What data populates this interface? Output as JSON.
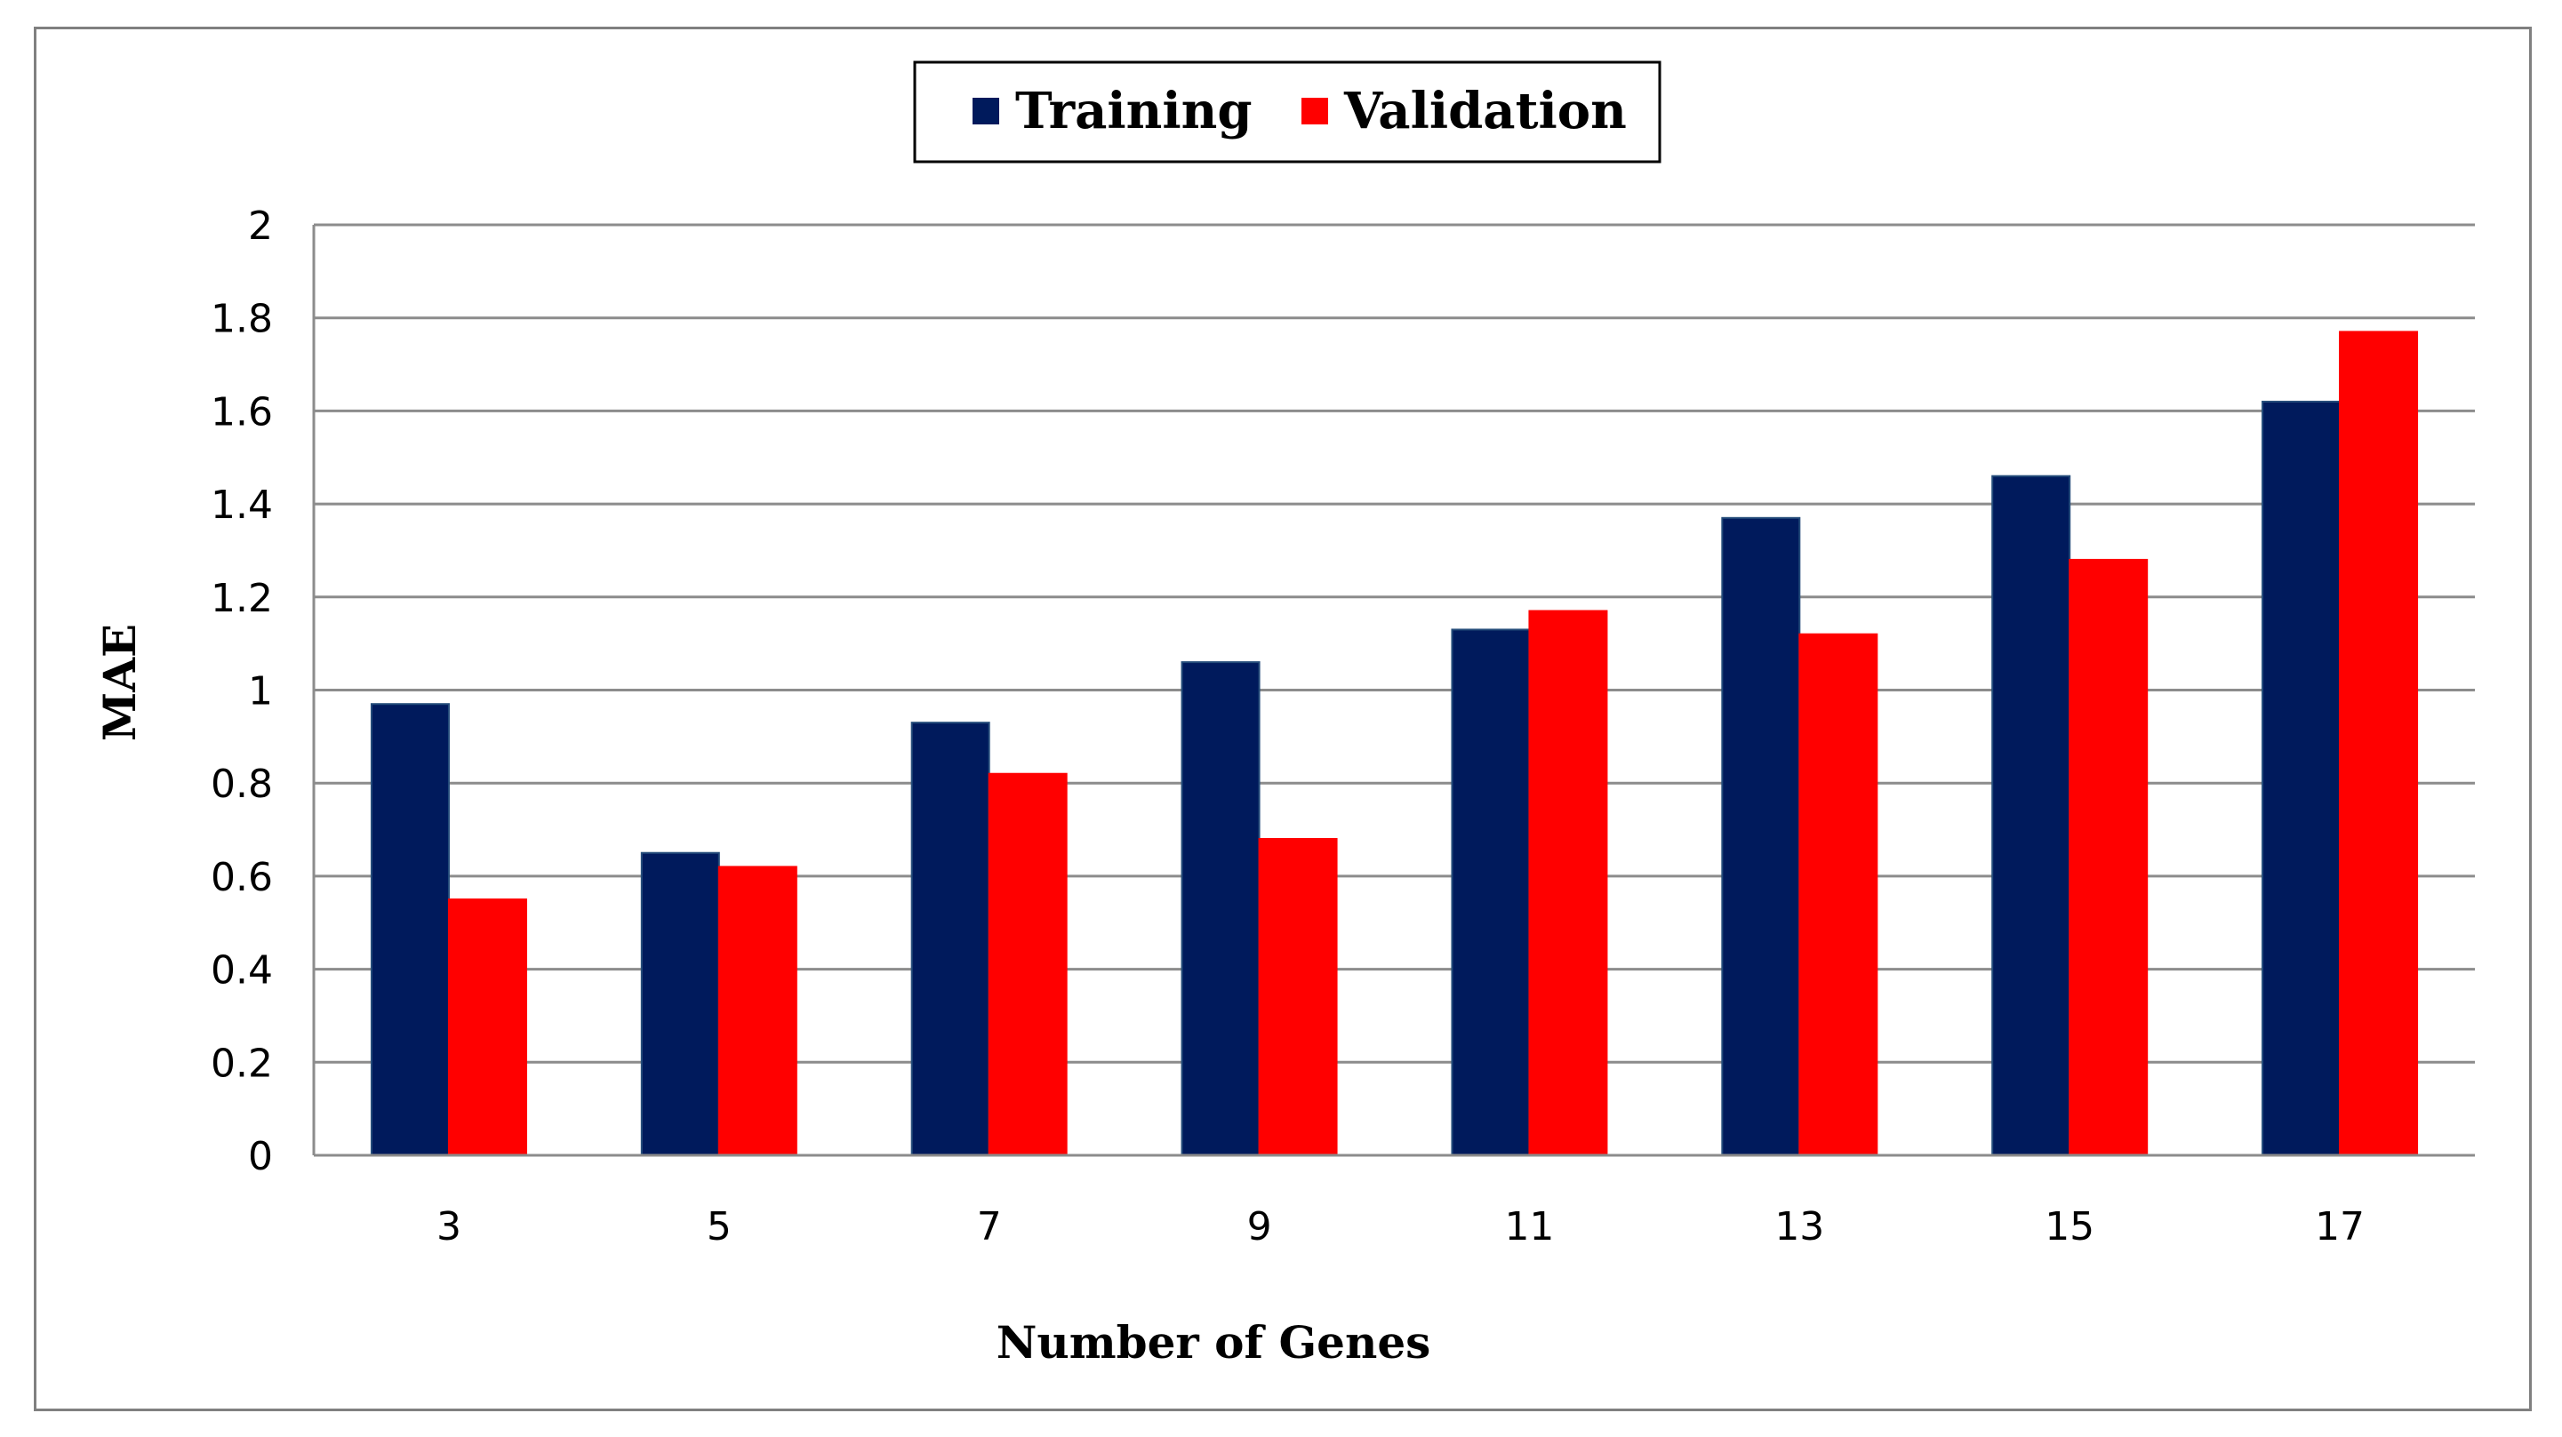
{
  "chart_data": {
    "type": "bar",
    "title": "",
    "xlabel": "Number of Genes",
    "ylabel": "MAE",
    "categories": [
      "3",
      "5",
      "7",
      "9",
      "11",
      "13",
      "15",
      "17"
    ],
    "series": [
      {
        "name": "Training",
        "color": "#001a5c",
        "values": [
          0.97,
          0.65,
          0.93,
          1.06,
          1.13,
          1.37,
          1.46,
          1.62
        ]
      },
      {
        "name": "Validation",
        "color": "#ff0000",
        "values": [
          0.55,
          0.62,
          0.82,
          0.68,
          1.17,
          1.12,
          1.28,
          1.77
        ]
      }
    ],
    "ylim": [
      0,
      2
    ],
    "yticks": [
      "0",
      "0.2",
      "0.4",
      "0.6",
      "0.8",
      "1",
      "1.2",
      "1.4",
      "1.6",
      "1.8",
      "2"
    ],
    "grid": true,
    "legend_position": "top-center"
  }
}
